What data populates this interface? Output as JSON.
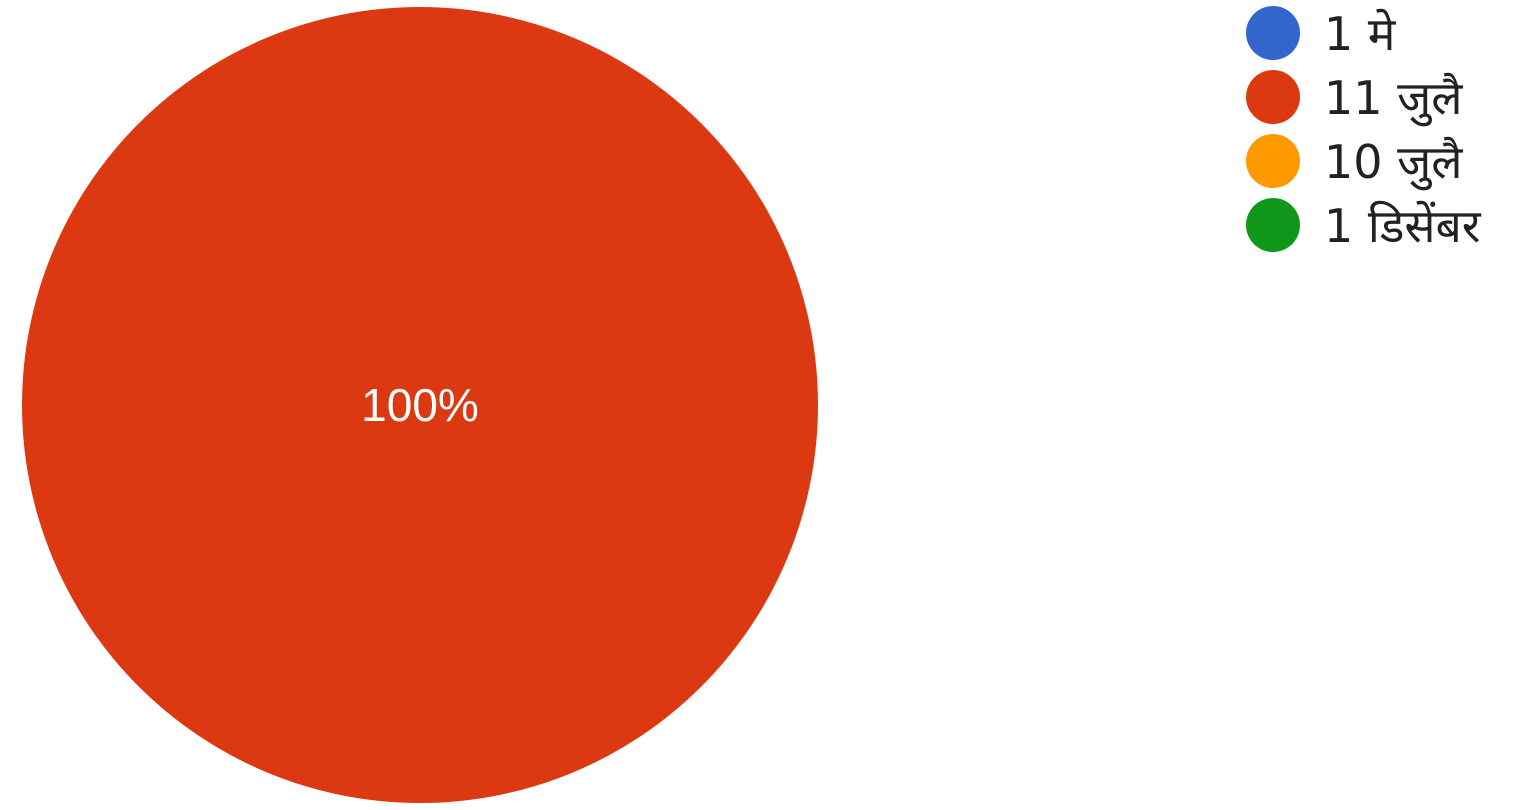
{
  "chart_data": {
    "type": "pie",
    "categories": [
      "1 मे",
      "11 जुलै",
      "10 जुलै",
      "1 डिसेंबर"
    ],
    "values": [
      0,
      100,
      0,
      0
    ],
    "colors": [
      "#3366cc",
      "#dc3912",
      "#ff9900",
      "#109618"
    ],
    "slice_labels": [
      "",
      "100%",
      "",
      ""
    ],
    "legend_position": "right"
  }
}
